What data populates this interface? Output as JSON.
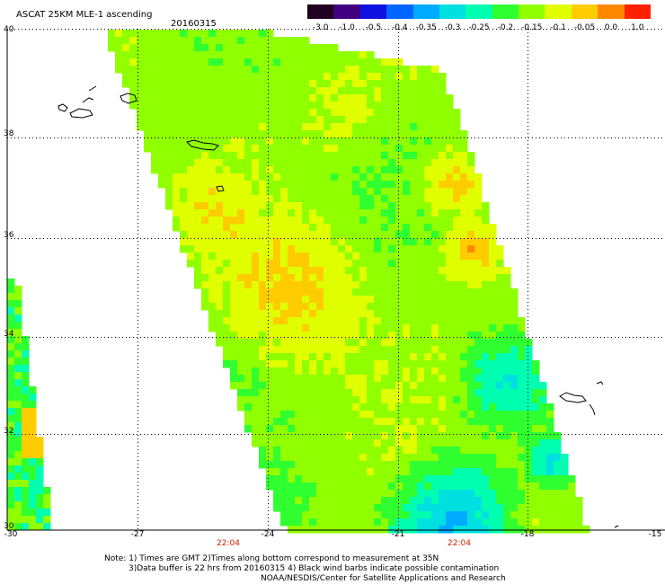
{
  "header": {
    "title": "ASCAT 25KM MLE-1 ascending",
    "date": "20160315"
  },
  "colorbar": {
    "labels": [
      "-3.0",
      "-1.0",
      "-0.5",
      "-0.4",
      "-0.35",
      "-0.3",
      "-0.25",
      "-0.2",
      "-0.15",
      "-0.1",
      "-0.05",
      "0.0",
      "1.0"
    ],
    "colors": [
      "#200020",
      "#400080",
      "#1010e0",
      "#0066ff",
      "#00aaff",
      "#00e0e0",
      "#00ffb0",
      "#30ff30",
      "#90ff00",
      "#e0ff00",
      "#ffcc00",
      "#ff8800",
      "#ff2000"
    ]
  },
  "axes": {
    "lat_labels": [
      "40",
      "38",
      "36",
      "34",
      "32",
      "30"
    ],
    "lon_labels": [
      "-30",
      "-27",
      "-24",
      "-21",
      "-18",
      "-15"
    ],
    "pass_times": [
      "22:04",
      "22:04"
    ]
  },
  "notes": {
    "line1": "Note: 1) Times are GMT 2)Times along bottom correspond to measurement at 35N",
    "line2": "3)Data buffer is 22 hrs from 20160315 4) Black wind barbs indicate possible contamination",
    "line3": "NOAA/NESDIS/Center for Satellite Applications and Research"
  }
}
